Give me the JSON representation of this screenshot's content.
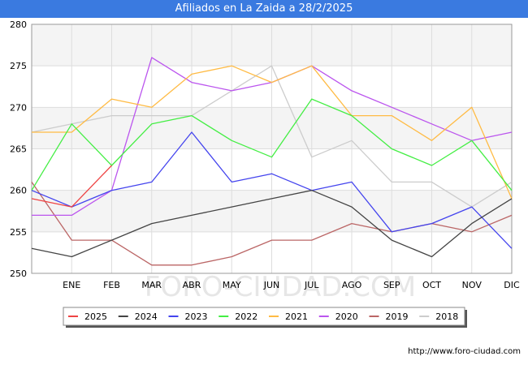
{
  "header": {
    "title": "Afiliados en La Zaida a 28/2/2025"
  },
  "footer": {
    "url": "http://www.foro-ciudad.com"
  },
  "watermark": "FORO-CIUDAD.COM",
  "chart_data": {
    "type": "line",
    "title": "Afiliados en La Zaida a 28/2/2025",
    "xlabel": "",
    "ylabel": "",
    "categories": [
      "",
      "ENE",
      "FEB",
      "MAR",
      "ABR",
      "MAY",
      "JUN",
      "JUL",
      "AGO",
      "SEP",
      "OCT",
      "NOV",
      "DIC"
    ],
    "ylim": [
      250,
      280
    ],
    "yticks": [
      250,
      255,
      260,
      265,
      270,
      275,
      280
    ],
    "grid": true,
    "legend_position": "bottom",
    "series": [
      {
        "name": "2025",
        "color": "#ee4444",
        "values": [
          259,
          258,
          263,
          null,
          null,
          null,
          null,
          null,
          null,
          null,
          null,
          null,
          null
        ]
      },
      {
        "name": "2024",
        "color": "#444444",
        "values": [
          253,
          252,
          254,
          256,
          257,
          258,
          259,
          260,
          258,
          254,
          252,
          256,
          259
        ]
      },
      {
        "name": "2023",
        "color": "#4444ee",
        "values": [
          260,
          258,
          260,
          261,
          267,
          261,
          262,
          260,
          261,
          255,
          256,
          258,
          253
        ]
      },
      {
        "name": "2022",
        "color": "#44ee44",
        "values": [
          260,
          268,
          263,
          268,
          269,
          266,
          264,
          271,
          269,
          265,
          263,
          266,
          260
        ]
      },
      {
        "name": "2021",
        "color": "#ffbb44",
        "values": [
          267,
          267,
          271,
          270,
          274,
          275,
          273,
          275,
          269,
          269,
          266,
          270,
          259
        ]
      },
      {
        "name": "2020",
        "color": "#bb55ee",
        "values": [
          257,
          257,
          260,
          276,
          273,
          272,
          273,
          275,
          272,
          270,
          268,
          266,
          267
        ]
      },
      {
        "name": "2019",
        "color": "#bb6666",
        "values": [
          261,
          254,
          254,
          251,
          251,
          252,
          254,
          254,
          256,
          255,
          256,
          255,
          257
        ]
      },
      {
        "name": "2018",
        "color": "#cccccc",
        "values": [
          267,
          268,
          269,
          269,
          269,
          272,
          275,
          264,
          266,
          261,
          261,
          258,
          261
        ]
      }
    ]
  }
}
